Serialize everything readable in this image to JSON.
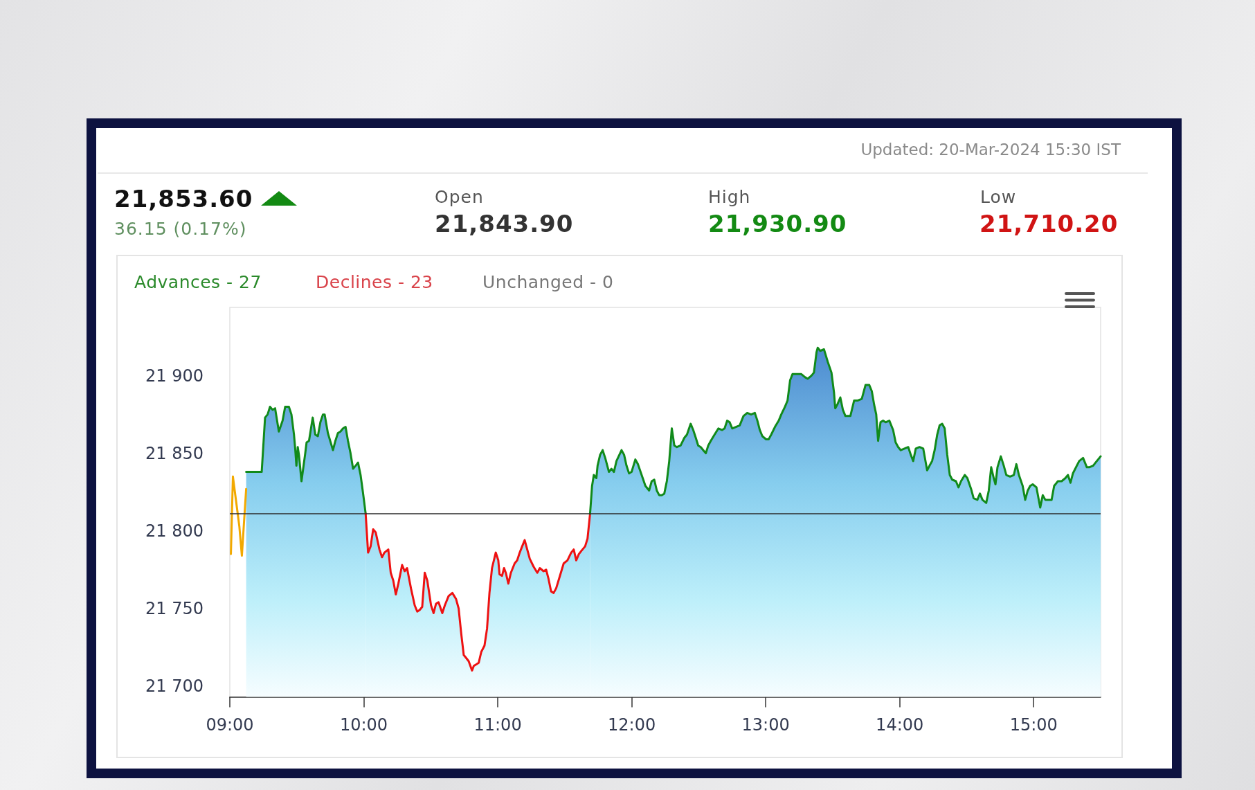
{
  "chart_data": {
    "type": "area",
    "annotations": [
      "Updated: 20-Mar-2024 15:30 IST",
      "21,853.60",
      "36.15 (0.17%)",
      "Open",
      "21,843.90",
      "High",
      "21,930.90",
      "Low",
      "21,710.20",
      "Advances - 27",
      "Declines - 23",
      "Unchanged - 0"
    ],
    "xlim": [
      9,
      15.5
    ],
    "xticks": [
      {
        "value": 9,
        "label": "09:00"
      },
      {
        "value": 10,
        "label": "10:00"
      },
      {
        "value": 11,
        "label": "11:00"
      },
      {
        "value": 12,
        "label": "12:00"
      },
      {
        "value": 13,
        "label": "13:00"
      },
      {
        "value": 14,
        "label": "14:00"
      },
      {
        "value": 15,
        "label": "15:00"
      }
    ],
    "ylim": [
      21693,
      21944
    ],
    "yticks": [
      {
        "value": 21700,
        "label": "21 700"
      },
      {
        "value": 21750,
        "label": "21 750"
      },
      {
        "value": 21800,
        "label": "21 800"
      },
      {
        "value": 21850,
        "label": "21 850"
      },
      {
        "value": 21900,
        "label": "21 900"
      }
    ],
    "grid": false,
    "ref_lines": [
      {
        "axis": "y",
        "value": 21811,
        "color": "#2b2b2b"
      }
    ],
    "series": [
      {
        "type": "line",
        "color": "#f2a900",
        "x": [
          9.008,
          9.023,
          9.071,
          9.09,
          9.122
        ],
        "values": [
          21785,
          21835,
          21803,
          21784,
          21827
        ]
      },
      {
        "color": "#118a1a",
        "x": [
          9.122,
          9.238,
          9.263,
          9.282,
          9.3,
          9.319,
          9.338,
          9.366,
          9.394,
          9.413,
          9.441,
          9.46,
          9.479,
          9.488,
          9.497,
          9.507,
          9.516,
          9.535,
          9.563,
          9.573,
          9.591,
          9.619,
          9.638,
          9.657,
          9.676,
          9.695,
          9.708,
          9.732,
          9.77,
          9.788,
          9.807,
          9.826,
          9.845,
          9.864,
          9.882,
          9.901,
          9.92,
          9.939,
          9.957,
          9.976,
          9.995,
          10.014
        ],
        "values": [
          21838,
          21838,
          21873,
          21875,
          21880,
          21878,
          21879,
          21864,
          21871,
          21880,
          21880,
          21875,
          21862,
          21853,
          21842,
          21854,
          21849,
          21832,
          21850,
          21857,
          21858,
          21873,
          21862,
          21861,
          21870,
          21875,
          21875,
          21863,
          21852,
          21858,
          21863,
          21864,
          21866,
          21867,
          21858,
          21850,
          21840,
          21842,
          21844,
          21836,
          21824,
          21811
        ]
      },
      {
        "color": "#ee1111",
        "x": [
          10.014,
          10.032,
          10.051,
          10.07,
          10.089,
          10.117,
          10.136,
          10.154,
          10.183,
          10.201,
          10.22,
          10.239,
          10.258,
          10.286,
          10.305,
          10.323,
          10.352,
          10.38,
          10.399,
          10.417,
          10.436,
          10.455,
          10.474,
          10.502,
          10.521,
          10.539,
          10.558,
          10.586,
          10.605,
          10.633,
          10.661,
          10.689,
          10.708,
          10.727,
          10.746,
          10.765,
          10.783,
          10.808,
          10.821,
          10.84,
          10.858,
          10.877,
          10.901,
          10.92,
          10.938,
          10.957,
          10.985,
          11.004,
          11.013,
          11.032,
          11.047,
          11.06,
          11.079,
          11.098,
          11.126,
          11.145,
          11.164,
          11.182,
          11.201,
          11.22,
          11.239,
          11.267,
          11.295,
          11.314,
          11.342,
          11.361,
          11.379,
          11.398,
          11.417,
          11.436,
          11.464,
          11.492,
          11.52,
          11.548,
          11.567,
          11.586,
          11.605,
          11.623,
          11.652,
          11.67,
          11.689
        ],
        "values": [
          21811,
          21786,
          21790,
          21801,
          21799,
          21788,
          21783,
          21786,
          21788,
          21773,
          21768,
          21759,
          21766,
          21778,
          21774,
          21776,
          21763,
          21752,
          21748,
          21749,
          21751,
          21773,
          21768,
          21752,
          21747,
          21753,
          21754,
          21747,
          21752,
          21758,
          21760,
          21756,
          21750,
          21734,
          21720,
          21718,
          21716,
          21710,
          21713,
          21714,
          21715,
          21722,
          21726,
          21737,
          21760,
          21776,
          21786,
          21781,
          21772,
          21771,
          21776,
          21773,
          21766,
          21773,
          21779,
          21781,
          21786,
          21790,
          21794,
          21788,
          21782,
          21777,
          21773,
          21776,
          21774,
          21775,
          21769,
          21761,
          21760,
          21763,
          21771,
          21779,
          21781,
          21786,
          21788,
          21781,
          21785,
          21787,
          21790,
          21795,
          21811
        ]
      },
      {
        "color": "#118a1a",
        "x": [
          11.689,
          11.704,
          11.717,
          11.736,
          11.745,
          11.764,
          11.783,
          11.802,
          11.83,
          11.849,
          11.867,
          11.886,
          11.924,
          11.943,
          11.961,
          11.98,
          11.999,
          12.027,
          12.046,
          12.074,
          12.102,
          12.13,
          12.149,
          12.168,
          12.187,
          12.205,
          12.224,
          12.243,
          12.262,
          12.28,
          12.299,
          12.318,
          12.337,
          12.365,
          12.393,
          12.412,
          12.44,
          12.459,
          12.478,
          12.496,
          12.515,
          12.534,
          12.553,
          12.571,
          12.59,
          12.618,
          12.647,
          12.675,
          12.693,
          12.712,
          12.731,
          12.75,
          12.778,
          12.806,
          12.834,
          12.862,
          12.891,
          12.919,
          12.938,
          12.956,
          12.975,
          13.003,
          13.022,
          13.041,
          13.069,
          13.097,
          13.116,
          13.144,
          13.163,
          13.182,
          13.2,
          13.228,
          13.266,
          13.294,
          13.313,
          13.341,
          13.36,
          13.379,
          13.388,
          13.407,
          13.435,
          13.463,
          13.491,
          13.51,
          13.519,
          13.538,
          13.557,
          13.576,
          13.595,
          13.632,
          13.66,
          13.688,
          13.717,
          13.745,
          13.773,
          13.792,
          13.81,
          13.825,
          13.839,
          13.857,
          13.876,
          13.895,
          13.923,
          13.951,
          13.97,
          13.989,
          14.008,
          14.036,
          14.064,
          14.083,
          14.101,
          14.12,
          14.148,
          14.176,
          14.205,
          14.223,
          14.242,
          14.261,
          14.28,
          14.298,
          14.317,
          14.336,
          14.355,
          14.374,
          14.392,
          14.42,
          14.439,
          14.458,
          14.486,
          14.505,
          14.533,
          14.552,
          14.58,
          14.599,
          14.618,
          14.646,
          14.665,
          14.683,
          14.702,
          14.715,
          14.73,
          14.755,
          14.777,
          14.796,
          14.824,
          14.852,
          14.871,
          14.89,
          14.918,
          14.937,
          14.956,
          14.974,
          14.993,
          15.021,
          15.049,
          15.068,
          15.087,
          15.106,
          15.134,
          15.153,
          15.181,
          15.209,
          15.237,
          15.256,
          15.275,
          15.293,
          15.322,
          15.34,
          15.369,
          15.397,
          15.415,
          15.444,
          15.462,
          15.481,
          15.5
        ],
        "values": [
          21811,
          21829,
          21836,
          21834,
          21842,
          21849,
          21852,
          21847,
          21838,
          21840,
          21838,
          21845,
          21852,
          21849,
          21842,
          21837,
          21838,
          21846,
          21843,
          21836,
          21829,
          21826,
          21832,
          21833,
          21826,
          21823,
          21823,
          21824,
          21832,
          21845,
          21866,
          21855,
          21854,
          21855,
          21860,
          21862,
          21869,
          21865,
          21860,
          21855,
          21854,
          21852,
          21850,
          21855,
          21858,
          21862,
          21866,
          21865,
          21866,
          21871,
          21870,
          21866,
          21867,
          21868,
          21874,
          21876,
          21875,
          21876,
          21871,
          21865,
          21861,
          21859,
          21859,
          21862,
          21867,
          21871,
          21875,
          21880,
          21884,
          21897,
          21901,
          21901,
          21901,
          21899,
          21898,
          21900,
          21902,
          21915,
          21918,
          21916,
          21917,
          21909,
          21902,
          21889,
          21879,
          21882,
          21886,
          21878,
          21874,
          21874,
          21884,
          21884,
          21885,
          21894,
          21894,
          21890,
          21881,
          21875,
          21858,
          21870,
          21871,
          21870,
          21871,
          21865,
          21857,
          21854,
          21852,
          21853,
          21854,
          21849,
          21845,
          21853,
          21854,
          21853,
          21839,
          21842,
          21845,
          21852,
          21862,
          21868,
          21869,
          21866,
          21849,
          21836,
          21833,
          21832,
          21828,
          21832,
          21836,
          21834,
          21827,
          21821,
          21820,
          21824,
          21820,
          21818,
          21826,
          21841,
          21834,
          21830,
          21841,
          21848,
          21842,
          21836,
          21835,
          21836,
          21843,
          21836,
          21829,
          21820,
          21826,
          21829,
          21830,
          21828,
          21815,
          21823,
          21820,
          21820,
          21820,
          21829,
          21832,
          21832,
          21834,
          21836,
          21831,
          21837,
          21842,
          21845,
          21847,
          21841,
          21841,
          21842,
          21844,
          21846,
          21848
        ]
      }
    ]
  }
}
